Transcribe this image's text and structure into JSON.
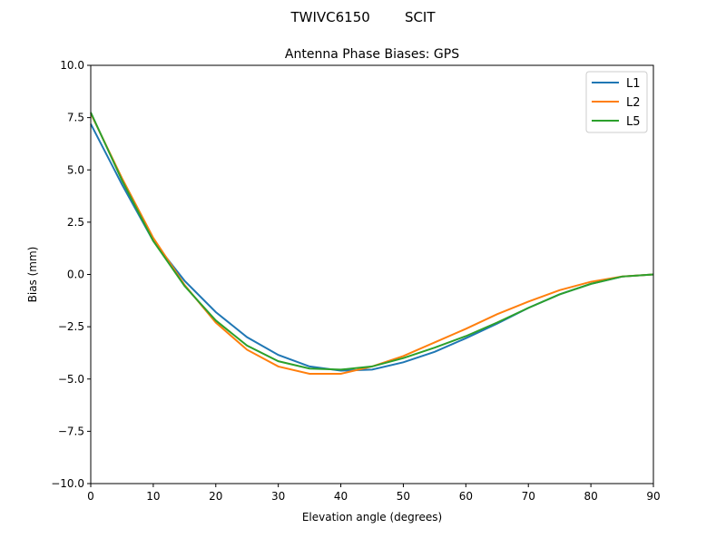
{
  "suptitle": "TWIVC6150        SCIT",
  "chart_data": {
    "type": "line",
    "title": "Antenna Phase Biases: GPS",
    "xlabel": "Elevation angle (degrees)",
    "ylabel": "Bias (mm)",
    "xlim": [
      0,
      90
    ],
    "ylim": [
      -10,
      10
    ],
    "xticks": [
      0,
      10,
      20,
      30,
      40,
      50,
      60,
      70,
      80,
      90
    ],
    "yticks": [
      -10.0,
      -7.5,
      -5.0,
      -2.5,
      0.0,
      2.5,
      5.0,
      7.5,
      10.0
    ],
    "grid": false,
    "legend_position": "top-right",
    "x": [
      0,
      5,
      10,
      15,
      20,
      25,
      30,
      35,
      40,
      45,
      50,
      55,
      60,
      65,
      70,
      75,
      80,
      85,
      90
    ],
    "series": [
      {
        "name": "L1",
        "color": "#1f77b4",
        "values": [
          7.2,
          4.3,
          1.6,
          -0.3,
          -1.8,
          -3.0,
          -3.85,
          -4.4,
          -4.6,
          -4.55,
          -4.2,
          -3.7,
          -3.05,
          -2.35,
          -1.6,
          -0.95,
          -0.45,
          -0.1,
          0.0
        ]
      },
      {
        "name": "L2",
        "color": "#ff7f0e",
        "values": [
          7.7,
          4.6,
          1.75,
          -0.5,
          -2.3,
          -3.6,
          -4.4,
          -4.75,
          -4.75,
          -4.4,
          -3.9,
          -3.25,
          -2.6,
          -1.9,
          -1.3,
          -0.75,
          -0.35,
          -0.1,
          0.0
        ]
      },
      {
        "name": "L5",
        "color": "#2ca02c",
        "values": [
          7.75,
          4.5,
          1.6,
          -0.55,
          -2.2,
          -3.4,
          -4.15,
          -4.5,
          -4.55,
          -4.4,
          -4.0,
          -3.5,
          -2.95,
          -2.3,
          -1.6,
          -0.95,
          -0.45,
          -0.1,
          0.0
        ]
      }
    ]
  }
}
